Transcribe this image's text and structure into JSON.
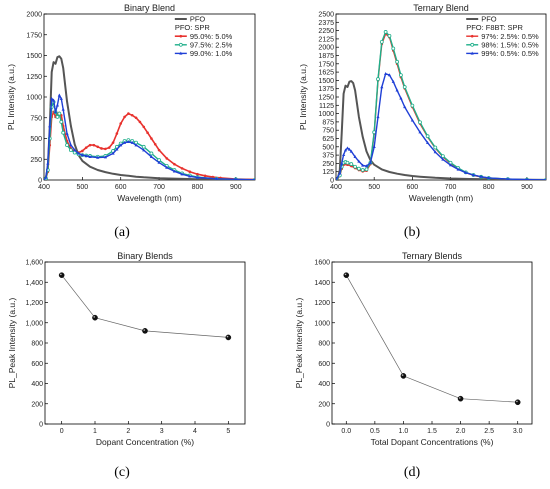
{
  "chart_data": [
    {
      "id": "a",
      "type": "line",
      "title": "Binary Blend",
      "xlabel": "Wavelength (nm)",
      "ylabel": "PL Intensity (a.u.)",
      "xlim": [
        400,
        950
      ],
      "ylim": [
        0,
        2000
      ],
      "xticks": [
        400,
        500,
        600,
        700,
        800,
        900
      ],
      "yticks": [
        0,
        250,
        500,
        750,
        1000,
        1250,
        1500,
        1750,
        2000
      ],
      "legend_position": "top-right",
      "legend_header": "PFO: SPR",
      "caption": "(a)",
      "series": [
        {
          "name": "PFO",
          "color": "#555555",
          "marker": "none",
          "width": 2,
          "x": [
            400,
            405,
            410,
            415,
            420,
            425,
            430,
            435,
            440,
            445,
            450,
            455,
            460,
            470,
            480,
            490,
            500,
            520,
            540,
            560,
            580,
            600,
            620,
            640,
            660,
            680,
            700,
            750,
            800,
            850,
            900,
            950
          ],
          "y": [
            0,
            30,
            150,
            650,
            1300,
            1420,
            1400,
            1480,
            1490,
            1460,
            1350,
            1150,
            950,
            650,
            430,
            300,
            230,
            160,
            120,
            95,
            75,
            60,
            50,
            40,
            33,
            28,
            22,
            15,
            10,
            6,
            4,
            2
          ]
        },
        {
          "name": "95.0%: 5.0%",
          "color": "#e8322e",
          "marker": "dot",
          "width": 1.6,
          "x": [
            400,
            405,
            410,
            415,
            420,
            425,
            430,
            435,
            440,
            445,
            450,
            460,
            470,
            480,
            490,
            500,
            510,
            520,
            530,
            540,
            550,
            560,
            570,
            580,
            590,
            600,
            610,
            620,
            630,
            640,
            650,
            660,
            670,
            680,
            690,
            700,
            720,
            740,
            760,
            780,
            800,
            820,
            840,
            860,
            900,
            950
          ],
          "y": [
            0,
            20,
            100,
            420,
            760,
            820,
            760,
            800,
            810,
            780,
            650,
            470,
            380,
            340,
            330,
            350,
            390,
            420,
            420,
            400,
            380,
            375,
            390,
            450,
            560,
            680,
            760,
            800,
            780,
            750,
            700,
            640,
            570,
            500,
            430,
            360,
            260,
            190,
            140,
            100,
            70,
            50,
            35,
            25,
            12,
            5
          ]
        },
        {
          "name": "97.5%: 2.5%",
          "color": "#1faf8a",
          "marker": "ring",
          "width": 1.4,
          "x": [
            400,
            405,
            410,
            415,
            420,
            425,
            430,
            435,
            440,
            445,
            450,
            460,
            470,
            480,
            490,
            500,
            510,
            520,
            540,
            560,
            580,
            590,
            600,
            610,
            620,
            630,
            640,
            660,
            680,
            700,
            720,
            740,
            760,
            780,
            800,
            850,
            900,
            950
          ],
          "y": [
            0,
            20,
            120,
            500,
            880,
            940,
            820,
            760,
            800,
            700,
            570,
            420,
            360,
            330,
            310,
            300,
            295,
            290,
            280,
            290,
            350,
            400,
            440,
            470,
            480,
            470,
            450,
            400,
            320,
            240,
            170,
            120,
            80,
            55,
            35,
            15,
            8,
            3
          ]
        },
        {
          "name": "99.0%: 1.0%",
          "color": "#1f3fd6",
          "marker": "tri",
          "width": 1.4,
          "x": [
            400,
            405,
            410,
            415,
            420,
            425,
            430,
            435,
            440,
            445,
            450,
            460,
            470,
            480,
            490,
            500,
            510,
            520,
            540,
            560,
            580,
            590,
            600,
            610,
            620,
            630,
            640,
            660,
            680,
            700,
            720,
            740,
            760,
            780,
            800,
            850,
            900,
            950
          ],
          "y": [
            0,
            30,
            200,
            650,
            980,
            960,
            820,
            900,
            1020,
            980,
            850,
            560,
            420,
            360,
            320,
            300,
            290,
            280,
            270,
            275,
            320,
            370,
            420,
            450,
            460,
            450,
            420,
            360,
            280,
            210,
            150,
            105,
            70,
            45,
            30,
            15,
            8,
            3
          ]
        }
      ]
    },
    {
      "id": "b",
      "type": "line",
      "title": "Ternary Blend",
      "xlabel": "Wavelength (nm)",
      "ylabel": "PL Intensity (a.u.)",
      "xlim": [
        400,
        950
      ],
      "ylim": [
        0,
        2500
      ],
      "xticks": [
        400,
        500,
        600,
        700,
        800,
        900
      ],
      "yticks": [
        0,
        125,
        250,
        375,
        500,
        625,
        750,
        875,
        1000,
        1125,
        1250,
        1375,
        1500,
        1625,
        1750,
        1875,
        2000,
        2125,
        2250,
        2375,
        2500
      ],
      "ytick_labels": [
        "0",
        "",
        "250",
        "",
        "500",
        "",
        "750",
        "",
        "1000",
        "",
        "1250",
        "",
        "1500",
        "",
        "1750",
        "",
        "2000",
        "",
        "2250",
        "",
        "2500"
      ],
      "ytick_labels_shown": [
        "0",
        "125",
        "250",
        "375",
        "500",
        "625",
        "750",
        "875",
        "1000",
        "1125",
        "1250",
        "1375",
        "1500",
        "1625",
        "1750",
        "1875",
        "2000",
        "2125",
        "2250",
        "2375",
        "2500"
      ],
      "legend_position": "top-right",
      "legend_header": "PFO: F8BT: SPR",
      "caption": "(b)",
      "series": [
        {
          "name": "PFO",
          "color": "#555555",
          "marker": "none",
          "width": 2,
          "x": [
            400,
            405,
            410,
            415,
            420,
            425,
            430,
            435,
            440,
            445,
            450,
            455,
            460,
            470,
            480,
            490,
            500,
            520,
            540,
            560,
            580,
            600,
            620,
            640,
            660,
            680,
            700,
            750,
            800,
            850,
            900,
            950
          ],
          "y": [
            0,
            30,
            150,
            700,
            1300,
            1420,
            1400,
            1480,
            1490,
            1460,
            1350,
            1150,
            950,
            650,
            430,
            300,
            230,
            160,
            120,
            95,
            75,
            60,
            50,
            40,
            33,
            28,
            22,
            15,
            10,
            6,
            4,
            2
          ]
        },
        {
          "name": "97%: 2.5%: 0.5%",
          "color": "#e8322e",
          "marker": "dot",
          "width": 1.4,
          "x": [
            400,
            410,
            415,
            420,
            425,
            430,
            440,
            450,
            460,
            470,
            480,
            490,
            500,
            510,
            520,
            530,
            540,
            550,
            560,
            570,
            580,
            600,
            620,
            640,
            660,
            680,
            700,
            720,
            740,
            760,
            780,
            800,
            850,
            900,
            950
          ],
          "y": [
            0,
            60,
            170,
            230,
            240,
            230,
            210,
            180,
            150,
            130,
            140,
            240,
            700,
            1500,
            2050,
            2200,
            2150,
            1950,
            1750,
            1550,
            1380,
            1100,
            850,
            650,
            480,
            350,
            250,
            170,
            110,
            70,
            45,
            28,
            12,
            5,
            2
          ]
        },
        {
          "name": "98%: 1.5%: 0.5%",
          "color": "#1faf8a",
          "marker": "ring",
          "width": 1.4,
          "x": [
            400,
            410,
            415,
            420,
            425,
            430,
            440,
            450,
            460,
            470,
            480,
            490,
            500,
            510,
            520,
            530,
            540,
            550,
            560,
            570,
            580,
            600,
            620,
            640,
            660,
            680,
            700,
            720,
            740,
            760,
            780,
            800,
            850,
            900,
            950
          ],
          "y": [
            0,
            70,
            200,
            260,
            270,
            260,
            240,
            200,
            170,
            150,
            160,
            260,
            720,
            1520,
            2080,
            2230,
            2170,
            1980,
            1780,
            1580,
            1400,
            1120,
            870,
            660,
            490,
            360,
            260,
            180,
            115,
            75,
            48,
            30,
            13,
            5,
            2
          ]
        },
        {
          "name": "99%: 0.5%: 0.5%",
          "color": "#1f3fd6",
          "marker": "tri",
          "width": 1.4,
          "x": [
            400,
            410,
            415,
            420,
            425,
            430,
            435,
            440,
            450,
            460,
            470,
            480,
            490,
            500,
            510,
            520,
            530,
            540,
            550,
            560,
            570,
            580,
            600,
            620,
            640,
            660,
            680,
            700,
            720,
            740,
            760,
            780,
            800,
            850,
            900,
            950
          ],
          "y": [
            0,
            100,
            250,
            380,
            450,
            480,
            460,
            430,
            350,
            280,
            220,
            210,
            260,
            500,
            950,
            1400,
            1600,
            1580,
            1480,
            1350,
            1230,
            1100,
            900,
            720,
            560,
            420,
            310,
            225,
            160,
            110,
            75,
            50,
            32,
            14,
            6,
            2
          ]
        }
      ]
    },
    {
      "id": "c",
      "type": "scatter",
      "title": "Binary Blends",
      "xlabel": "Dopant Concentration (%)",
      "ylabel": "PL_Peak Intensity (a.u.)",
      "xlim": [
        -0.5,
        5.5
      ],
      "ylim": [
        0,
        1600
      ],
      "xticks": [
        0,
        1,
        2,
        3,
        4,
        5
      ],
      "xtick_labels": [
        "0",
        "1",
        "2",
        "3",
        "4",
        "5"
      ],
      "yticks": [
        0,
        200,
        400,
        600,
        800,
        1000,
        1200,
        1400,
        1600
      ],
      "ytick_labels": [
        "0",
        "200",
        "400",
        "600",
        "800",
        "1,000",
        "1,200",
        "1,400",
        "1,600"
      ],
      "caption": "(c)",
      "points": {
        "x": [
          0,
          1,
          2.5,
          5
        ],
        "y": [
          1470,
          1050,
          920,
          855
        ]
      }
    },
    {
      "id": "d",
      "type": "scatter",
      "title": "Ternary Blends",
      "xlabel": "Total Dopant Concentrations (%)",
      "ylabel": "PL_Peak Intensity (a.u.)",
      "xlim": [
        -0.25,
        3.25
      ],
      "ylim": [
        0,
        1600
      ],
      "xticks": [
        0,
        0.5,
        1,
        1.5,
        2,
        2.5,
        3
      ],
      "xtick_labels": [
        "0.0",
        "0.5",
        "1.0",
        "1.5",
        "2.0",
        "2.5",
        "3.0"
      ],
      "yticks": [
        0,
        200,
        400,
        600,
        800,
        1000,
        1200,
        1400,
        1600
      ],
      "ytick_labels": [
        "0",
        "200",
        "400",
        "600",
        "800",
        "1000",
        "1200",
        "1400",
        "1600"
      ],
      "caption": "(d)",
      "points": {
        "x": [
          0,
          1,
          2,
          3
        ],
        "y": [
          1470,
          475,
          250,
          215
        ]
      }
    }
  ]
}
